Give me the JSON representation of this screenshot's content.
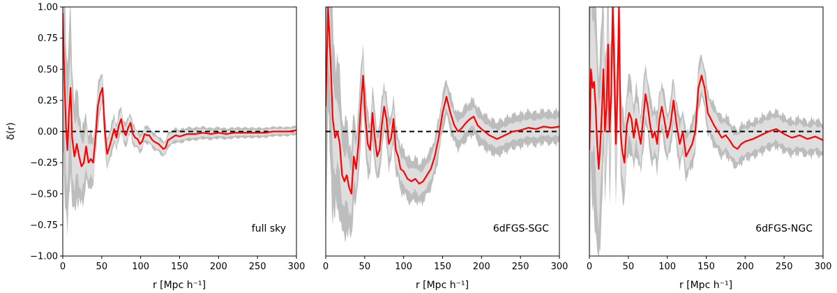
{
  "chart_data": [
    {
      "type": "line",
      "panel_label": "full sky",
      "xlabel": "r [Mpc h⁻¹]",
      "ylabel": "δ(r)",
      "xlim": [
        0,
        300
      ],
      "ylim": [
        -1.0,
        1.0
      ],
      "xticks": [
        "0",
        "50",
        "100",
        "150",
        "200",
        "250",
        "300"
      ],
      "yticks": [
        "−1.00",
        "−0.75",
        "−0.50",
        "−0.25",
        "0.00",
        "0.25",
        "0.50",
        "0.75",
        "1.00"
      ],
      "reference_line": 0.0,
      "series": [
        {
          "name": "delta",
          "color": "#ff0000",
          "x": [
            0,
            2,
            4,
            6,
            8,
            10,
            12,
            15,
            18,
            21,
            24,
            27,
            30,
            33,
            36,
            39,
            42,
            45,
            48,
            51,
            54,
            57,
            60,
            63,
            66,
            69,
            72,
            75,
            78,
            81,
            84,
            87,
            90,
            93,
            96,
            99,
            102,
            105,
            108,
            111,
            114,
            117,
            120,
            123,
            126,
            129,
            132,
            135,
            140,
            145,
            150,
            155,
            160,
            170,
            180,
            190,
            200,
            210,
            220,
            230,
            240,
            250,
            260,
            270,
            280,
            290,
            300
          ],
          "y": [
            0.95,
            0.45,
            0.05,
            -0.15,
            0.15,
            0.35,
            -0.05,
            -0.2,
            -0.1,
            -0.2,
            -0.28,
            -0.25,
            -0.12,
            -0.25,
            -0.22,
            -0.25,
            -0.05,
            0.2,
            0.3,
            0.35,
            0.0,
            -0.18,
            -0.12,
            -0.05,
            0.02,
            -0.05,
            0.05,
            0.1,
            0.0,
            -0.03,
            0.03,
            0.07,
            -0.02,
            -0.05,
            -0.06,
            -0.1,
            -0.08,
            -0.02,
            -0.03,
            -0.03,
            -0.06,
            -0.08,
            -0.09,
            -0.1,
            -0.12,
            -0.14,
            -0.13,
            -0.07,
            -0.05,
            -0.03,
            -0.04,
            -0.03,
            -0.02,
            -0.02,
            -0.01,
            -0.02,
            -0.01,
            -0.02,
            -0.01,
            -0.01,
            -0.01,
            -0.01,
            -0.01,
            0.0,
            0.0,
            0.0,
            0.01
          ]
        }
      ],
      "inner_band_halfwidth": {
        "x": [
          0,
          10,
          20,
          30,
          50,
          75,
          100,
          150,
          200,
          300
        ],
        "y": [
          0.35,
          0.3,
          0.22,
          0.16,
          0.09,
          0.07,
          0.05,
          0.035,
          0.025,
          0.02
        ]
      },
      "outer_band_halfwidth": {
        "x": [
          0,
          5,
          10,
          20,
          30,
          40,
          50,
          75,
          100,
          150,
          200,
          300
        ],
        "y": [
          0.9,
          0.75,
          0.6,
          0.38,
          0.26,
          0.18,
          0.14,
          0.1,
          0.07,
          0.055,
          0.045,
          0.035
        ]
      }
    },
    {
      "type": "line",
      "panel_label": "6dFGS-SGC",
      "xlabel": "r [Mpc h⁻¹]",
      "xlim": [
        0,
        300
      ],
      "ylim": [
        -1.0,
        1.0
      ],
      "xticks": [
        "0",
        "50",
        "100",
        "150",
        "200",
        "250",
        "300"
      ],
      "reference_line": 0.0,
      "series": [
        {
          "name": "delta",
          "color": "#ff0000",
          "x": [
            0,
            3,
            6,
            9,
            12,
            15,
            18,
            21,
            24,
            27,
            30,
            33,
            36,
            39,
            42,
            45,
            48,
            51,
            54,
            57,
            60,
            63,
            66,
            69,
            72,
            75,
            78,
            81,
            84,
            87,
            90,
            93,
            96,
            100,
            105,
            110,
            115,
            120,
            125,
            130,
            135,
            140,
            145,
            150,
            155,
            160,
            165,
            170,
            175,
            180,
            185,
            190,
            195,
            200,
            210,
            220,
            230,
            240,
            250,
            260,
            270,
            280,
            290,
            300
          ],
          "y": [
            0.2,
            1.0,
            0.6,
            0.1,
            -0.05,
            0.0,
            -0.1,
            -0.35,
            -0.4,
            -0.35,
            -0.45,
            -0.5,
            -0.2,
            -0.3,
            -0.1,
            0.2,
            0.45,
            0.1,
            -0.1,
            -0.15,
            0.15,
            -0.05,
            -0.2,
            -0.15,
            0.05,
            0.2,
            0.1,
            -0.1,
            -0.05,
            0.1,
            -0.15,
            -0.2,
            -0.3,
            -0.32,
            -0.38,
            -0.4,
            -0.38,
            -0.42,
            -0.4,
            -0.35,
            -0.3,
            -0.2,
            -0.05,
            0.15,
            0.28,
            0.15,
            0.05,
            0.0,
            0.03,
            0.07,
            0.1,
            0.12,
            0.05,
            0.02,
            -0.03,
            -0.06,
            -0.03,
            0.0,
            0.01,
            0.03,
            0.02,
            0.04,
            0.03,
            0.04
          ]
        }
      ],
      "inner_band_halfwidth": {
        "x": [
          0,
          10,
          20,
          40,
          60,
          100,
          150,
          200,
          300
        ],
        "y": [
          0.35,
          0.3,
          0.22,
          0.16,
          0.13,
          0.1,
          0.08,
          0.07,
          0.07
        ]
      },
      "outer_band_halfwidth": {
        "x": [
          0,
          5,
          10,
          20,
          40,
          60,
          100,
          150,
          200,
          300
        ],
        "y": [
          1.0,
          0.9,
          0.7,
          0.5,
          0.3,
          0.22,
          0.18,
          0.15,
          0.14,
          0.13
        ]
      }
    },
    {
      "type": "line",
      "panel_label": "6dFGS-NGC",
      "xlabel": "r [Mpc h⁻¹]",
      "xlim": [
        0,
        300
      ],
      "ylim": [
        -1.0,
        1.0
      ],
      "xticks": [
        "0",
        "50",
        "100",
        "150",
        "200",
        "250",
        "300"
      ],
      "reference_line": 0.0,
      "series": [
        {
          "name": "delta",
          "color": "#ff0000",
          "x": [
            0,
            2,
            4,
            6,
            8,
            10,
            12,
            14,
            16,
            18,
            20,
            22,
            24,
            26,
            28,
            30,
            32,
            34,
            36,
            38,
            40,
            42,
            45,
            48,
            51,
            54,
            57,
            60,
            63,
            66,
            69,
            72,
            75,
            78,
            81,
            84,
            87,
            90,
            93,
            96,
            100,
            104,
            108,
            112,
            116,
            120,
            124,
            128,
            132,
            136,
            140,
            144,
            148,
            152,
            156,
            160,
            165,
            170,
            175,
            180,
            185,
            190,
            195,
            200,
            210,
            220,
            230,
            240,
            250,
            260,
            270,
            280,
            290,
            300
          ],
          "y": [
            -0.15,
            0.5,
            0.35,
            0.4,
            0.2,
            -0.1,
            -0.3,
            -0.1,
            0.15,
            0.5,
            0.0,
            0.2,
            0.7,
            0.0,
            0.3,
            1.0,
            0.5,
            -0.1,
            0.3,
            1.0,
            0.0,
            -0.15,
            -0.25,
            0.05,
            0.15,
            0.1,
            -0.05,
            0.1,
            0.0,
            -0.1,
            0.1,
            0.3,
            0.2,
            0.05,
            -0.05,
            0.0,
            -0.1,
            0.1,
            0.2,
            0.1,
            -0.05,
            0.05,
            0.25,
            0.05,
            -0.1,
            0.0,
            -0.2,
            -0.15,
            -0.1,
            0.0,
            0.35,
            0.45,
            0.35,
            0.15,
            0.1,
            0.05,
            0.0,
            -0.05,
            -0.03,
            -0.07,
            -0.12,
            -0.14,
            -0.1,
            -0.08,
            -0.06,
            -0.03,
            0.0,
            0.02,
            -0.02,
            -0.05,
            -0.03,
            -0.06,
            -0.04,
            -0.07
          ]
        }
      ],
      "inner_band_halfwidth": {
        "x": [
          0,
          10,
          20,
          40,
          60,
          100,
          150,
          200,
          300
        ],
        "y": [
          0.6,
          0.5,
          0.35,
          0.22,
          0.17,
          0.13,
          0.11,
          0.1,
          0.09
        ]
      },
      "outer_band_halfwidth": {
        "x": [
          0,
          5,
          10,
          20,
          40,
          60,
          100,
          150,
          200,
          300
        ],
        "y": [
          1.0,
          1.0,
          0.9,
          0.6,
          0.35,
          0.26,
          0.2,
          0.17,
          0.15,
          0.14
        ]
      }
    }
  ]
}
